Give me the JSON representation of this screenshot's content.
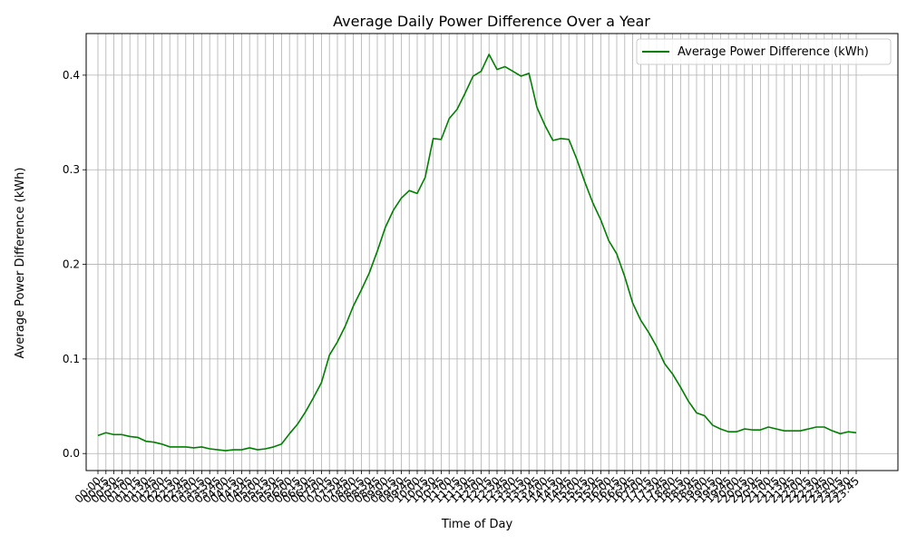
{
  "chart_data": {
    "type": "line",
    "title": "Average Daily Power Difference Over a Year",
    "xlabel": "Time of Day",
    "ylabel": "Average Power Difference (kWh)",
    "ylim": [
      -0.018,
      0.444
    ],
    "yticks": [
      "0.0",
      "0.1",
      "0.2",
      "0.3",
      "0.4"
    ],
    "ytick_values": [
      0.0,
      0.1,
      0.2,
      0.3,
      0.4
    ],
    "grid": true,
    "legend_position": "top-right",
    "series": [
      {
        "name": "Average Power Difference (kWh)",
        "color": "#008000",
        "values": [
          0.019,
          0.022,
          0.02,
          0.02,
          0.018,
          0.017,
          0.013,
          0.012,
          0.01,
          0.007,
          0.007,
          0.007,
          0.006,
          0.007,
          0.005,
          0.004,
          0.003,
          0.004,
          0.004,
          0.006,
          0.004,
          0.005,
          0.007,
          0.01,
          0.021,
          0.031,
          0.044,
          0.059,
          0.075,
          0.104,
          0.118,
          0.135,
          0.156,
          0.173,
          0.191,
          0.214,
          0.239,
          0.257,
          0.27,
          0.278,
          0.275,
          0.292,
          0.333,
          0.332,
          0.354,
          0.364,
          0.381,
          0.399,
          0.404,
          0.422,
          0.406,
          0.409,
          0.404,
          0.399,
          0.402,
          0.366,
          0.347,
          0.331,
          0.333,
          0.332,
          0.311,
          0.287,
          0.265,
          0.247,
          0.225,
          0.211,
          0.187,
          0.159,
          0.141,
          0.128,
          0.113,
          0.095,
          0.084,
          0.07,
          0.055,
          0.043,
          0.04,
          0.03,
          0.026,
          0.023,
          0.023,
          0.026,
          0.025,
          0.025,
          0.028,
          0.026,
          0.024,
          0.024,
          0.024,
          0.026,
          0.028,
          0.028,
          0.024,
          0.021,
          0.023,
          0.022
        ]
      }
    ],
    "x_tick_labels": [
      "00:00",
      "00:15",
      "00:30",
      "00:45",
      "01:00",
      "01:15",
      "01:30",
      "01:45",
      "02:00",
      "02:15",
      "02:30",
      "02:45",
      "03:00",
      "03:15",
      "03:30",
      "03:45",
      "04:00",
      "04:15",
      "04:30",
      "04:45",
      "05:00",
      "05:15",
      "05:30",
      "05:45",
      "06:00",
      "06:15",
      "06:30",
      "06:45",
      "07:00",
      "07:15",
      "07:30",
      "07:45",
      "08:00",
      "08:15",
      "08:30",
      "08:45",
      "09:00",
      "09:15",
      "09:30",
      "09:45",
      "10:00",
      "10:15",
      "10:30",
      "10:45",
      "11:00",
      "11:15",
      "11:30",
      "11:45",
      "12:00",
      "12:15",
      "12:30",
      "12:45",
      "13:00",
      "13:15",
      "13:30",
      "13:45",
      "14:00",
      "14:15",
      "14:30",
      "14:45",
      "15:00",
      "15:15",
      "15:30",
      "15:45",
      "16:00",
      "16:15",
      "16:30",
      "16:45",
      "17:00",
      "17:15",
      "17:30",
      "17:45",
      "18:00",
      "18:15",
      "18:30",
      "18:45",
      "19:00",
      "19:15",
      "19:30",
      "19:45",
      "20:00",
      "20:15",
      "20:30",
      "20:45",
      "21:00",
      "21:15",
      "21:30",
      "21:45",
      "22:00",
      "22:15",
      "22:30",
      "22:45",
      "23:00",
      "23:15",
      "23:30",
      "23:45"
    ]
  }
}
